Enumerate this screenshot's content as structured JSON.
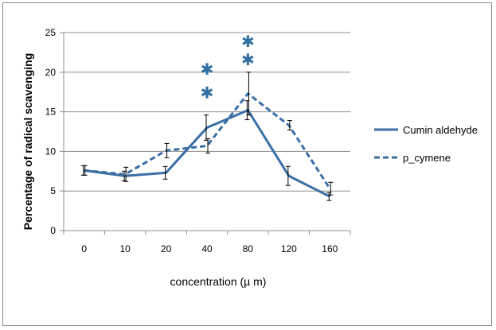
{
  "chart_data": {
    "type": "line",
    "title": "",
    "xlabel": "concentration (µ m)",
    "ylabel": "Percentage of radical scavenging",
    "categories": [
      "0",
      "10",
      "20",
      "40",
      "80",
      "120",
      "160"
    ],
    "ylim": [
      0,
      25
    ],
    "yticks": [
      "0",
      "5",
      "10",
      "15",
      "20",
      "25"
    ],
    "grid": true,
    "legend_position": "right",
    "series": [
      {
        "name": "Cumin aldehyde",
        "style": "solid",
        "color": "#3a6ea5",
        "values": [
          7.6,
          6.9,
          7.3,
          13.0,
          15.2,
          6.9,
          4.3
        ],
        "error": [
          0.6,
          0.6,
          0.8,
          1.6,
          1.2,
          1.2,
          0.5
        ]
      },
      {
        "name": "p_cymene",
        "style": "dashed",
        "color": "#3a6ea5",
        "values": [
          7.6,
          7.1,
          10.1,
          10.7,
          17.3,
          13.3,
          5.3
        ],
        "error": [
          0.6,
          0.9,
          0.9,
          0.9,
          2.7,
          0.6,
          0.8
        ]
      }
    ],
    "annotations": [
      {
        "symbol": "*",
        "category": "40",
        "value": 20.5,
        "color": "#2f6fa0"
      },
      {
        "symbol": "*",
        "category": "40",
        "value": 17.5,
        "color": "#2f6fa0"
      },
      {
        "symbol": "*",
        "category": "80",
        "value": 24.0,
        "color": "#2f6fa0"
      },
      {
        "symbol": "*",
        "category": "80",
        "value": 21.7,
        "color": "#2f6fa0"
      }
    ]
  }
}
